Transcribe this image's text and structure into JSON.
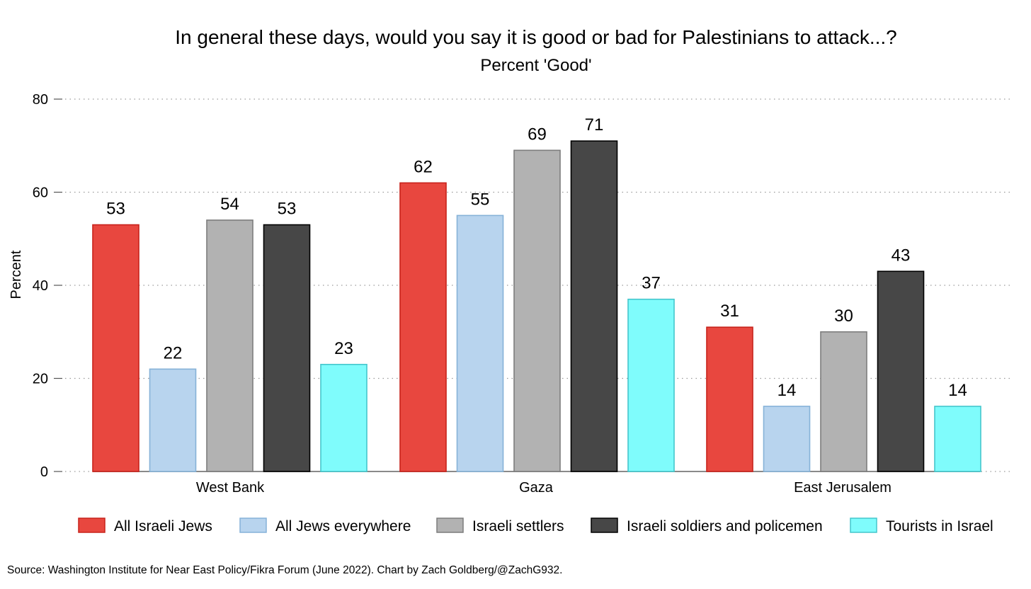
{
  "chart_data": {
    "type": "bar",
    "title": "In general these days, would you say it is good or bad for Palestinians to attack...?",
    "subtitle": "Percent 'Good'",
    "xlabel": "",
    "ylabel": "Percent",
    "ylim": [
      0,
      80
    ],
    "yticks": [
      0,
      20,
      40,
      60,
      80
    ],
    "grid": true,
    "legend_position": "bottom",
    "categories": [
      "West Bank",
      "Gaza",
      "East Jerusalem"
    ],
    "series": [
      {
        "name": "All Israeli Jews",
        "values": [
          53,
          62,
          31
        ],
        "color": "#e8473f",
        "stroke": "#c8231c"
      },
      {
        "name": "All Jews everywhere",
        "values": [
          22,
          55,
          14
        ],
        "color": "#b8d4ee",
        "stroke": "#86b2d8"
      },
      {
        "name": "Israeli settlers",
        "values": [
          54,
          69,
          30
        ],
        "color": "#b2b2b2",
        "stroke": "#7d7d7d"
      },
      {
        "name": "Israeli soldiers and policemen",
        "values": [
          53,
          71,
          43
        ],
        "color": "#474747",
        "stroke": "#000000"
      },
      {
        "name": "Tourists in Israel",
        "values": [
          23,
          37,
          14
        ],
        "color": "#7ffcfc",
        "stroke": "#45c6cc"
      }
    ]
  },
  "source": "Source: Washington Institute for Near East Policy/Fikra Forum (June 2022). Chart by Zach Goldberg/@ZachG932."
}
